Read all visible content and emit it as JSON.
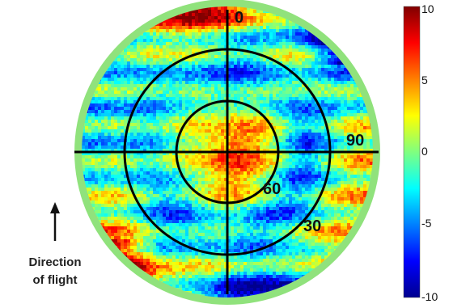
{
  "chart_data": {
    "type": "heatmap",
    "projection": "polar",
    "title": "",
    "angle_labels": [
      "0",
      "90"
    ],
    "ring_labels": [
      "60",
      "30"
    ],
    "colorbar": {
      "ticks": [
        "10",
        "5",
        "0",
        "-5",
        "-10"
      ],
      "range": [
        -10,
        10
      ],
      "colormap": "jet"
    },
    "annotation": {
      "line1": "Direction",
      "line2": "of flight"
    },
    "colors": {
      "background_ring": "#90e27c",
      "grid_lines": "#000000"
    }
  }
}
